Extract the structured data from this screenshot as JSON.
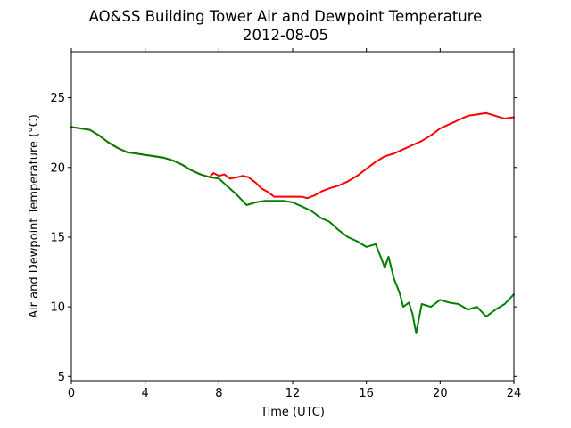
{
  "chart_data": {
    "type": "line",
    "title": "AO&SS Building Tower Air and Dewpoint Temperature",
    "subtitle": "2012-08-05",
    "xlabel": "Time (UTC)",
    "ylabel": "Air and Dewpoint Temperature (°C)",
    "xlim": [
      0,
      24
    ],
    "ylim": [
      4.7,
      28.3
    ],
    "xticks": [
      0,
      4,
      8,
      12,
      16,
      20,
      24
    ],
    "xtick_labels": [
      "0",
      "4",
      "8",
      "12",
      "16",
      "20",
      "24"
    ],
    "yticks": [
      5,
      10,
      15,
      20,
      25
    ],
    "ytick_labels": [
      "5",
      "10",
      "15",
      "20",
      "25"
    ],
    "grid": false,
    "legend": "none",
    "series": [
      {
        "role": "air",
        "color": "#ff0000",
        "x": [
          0,
          0.5,
          1,
          1.5,
          2,
          2.5,
          3,
          3.5,
          4,
          4.5,
          5,
          5.5,
          6,
          6.5,
          7,
          7.5,
          7.7,
          8.0,
          8.3,
          8.6,
          9.0,
          9.3,
          9.6,
          10.0,
          10.3,
          10.7,
          11.0,
          11.5,
          12.0,
          12.5,
          12.8,
          13.2,
          13.6,
          14.0,
          14.5,
          15.0,
          15.5,
          16.0,
          16.5,
          17.0,
          17.5,
          18.0,
          18.5,
          19.0,
          19.5,
          20.0,
          20.5,
          21.0,
          21.5,
          22.0,
          22.5,
          23.0,
          23.5,
          24.0
        ],
        "y": [
          22.9,
          22.8,
          22.7,
          22.3,
          21.8,
          21.4,
          21.1,
          21.0,
          20.9,
          20.8,
          20.7,
          20.5,
          20.2,
          19.8,
          19.5,
          19.3,
          19.6,
          19.4,
          19.5,
          19.2,
          19.3,
          19.4,
          19.3,
          18.9,
          18.5,
          18.2,
          17.9,
          17.9,
          17.9,
          17.9,
          17.8,
          18.0,
          18.3,
          18.5,
          18.7,
          19.0,
          19.4,
          19.9,
          20.4,
          20.8,
          21.0,
          21.3,
          21.6,
          21.9,
          22.3,
          22.8,
          23.1,
          23.4,
          23.7,
          23.8,
          23.9,
          23.7,
          23.5,
          23.6
        ]
      },
      {
        "role": "dewpoint",
        "color": "#008000",
        "x": [
          0,
          0.5,
          1,
          1.5,
          2,
          2.5,
          3,
          3.5,
          4,
          4.5,
          5,
          5.5,
          6,
          6.5,
          7,
          7.5,
          8.0,
          8.5,
          9.0,
          9.5,
          10.0,
          10.5,
          11.0,
          11.5,
          12.0,
          12.5,
          13.0,
          13.5,
          14.0,
          14.5,
          15.0,
          15.5,
          16.0,
          16.5,
          16.8,
          17.0,
          17.2,
          17.5,
          17.8,
          18.0,
          18.3,
          18.5,
          18.7,
          19.0,
          19.5,
          20.0,
          20.5,
          21.0,
          21.5,
          22.0,
          22.5,
          23.0,
          23.5,
          24.0
        ],
        "y": [
          22.9,
          22.8,
          22.7,
          22.3,
          21.8,
          21.4,
          21.1,
          21.0,
          20.9,
          20.8,
          20.7,
          20.5,
          20.2,
          19.8,
          19.5,
          19.3,
          19.2,
          18.6,
          18.0,
          17.3,
          17.5,
          17.6,
          17.6,
          17.6,
          17.5,
          17.2,
          16.9,
          16.4,
          16.1,
          15.5,
          15.0,
          14.7,
          14.3,
          14.5,
          13.5,
          12.8,
          13.6,
          12.0,
          11.0,
          10.0,
          10.3,
          9.5,
          8.1,
          10.2,
          10.0,
          10.5,
          10.3,
          10.2,
          9.8,
          10.0,
          9.3,
          9.8,
          10.2,
          10.9
        ]
      }
    ]
  }
}
